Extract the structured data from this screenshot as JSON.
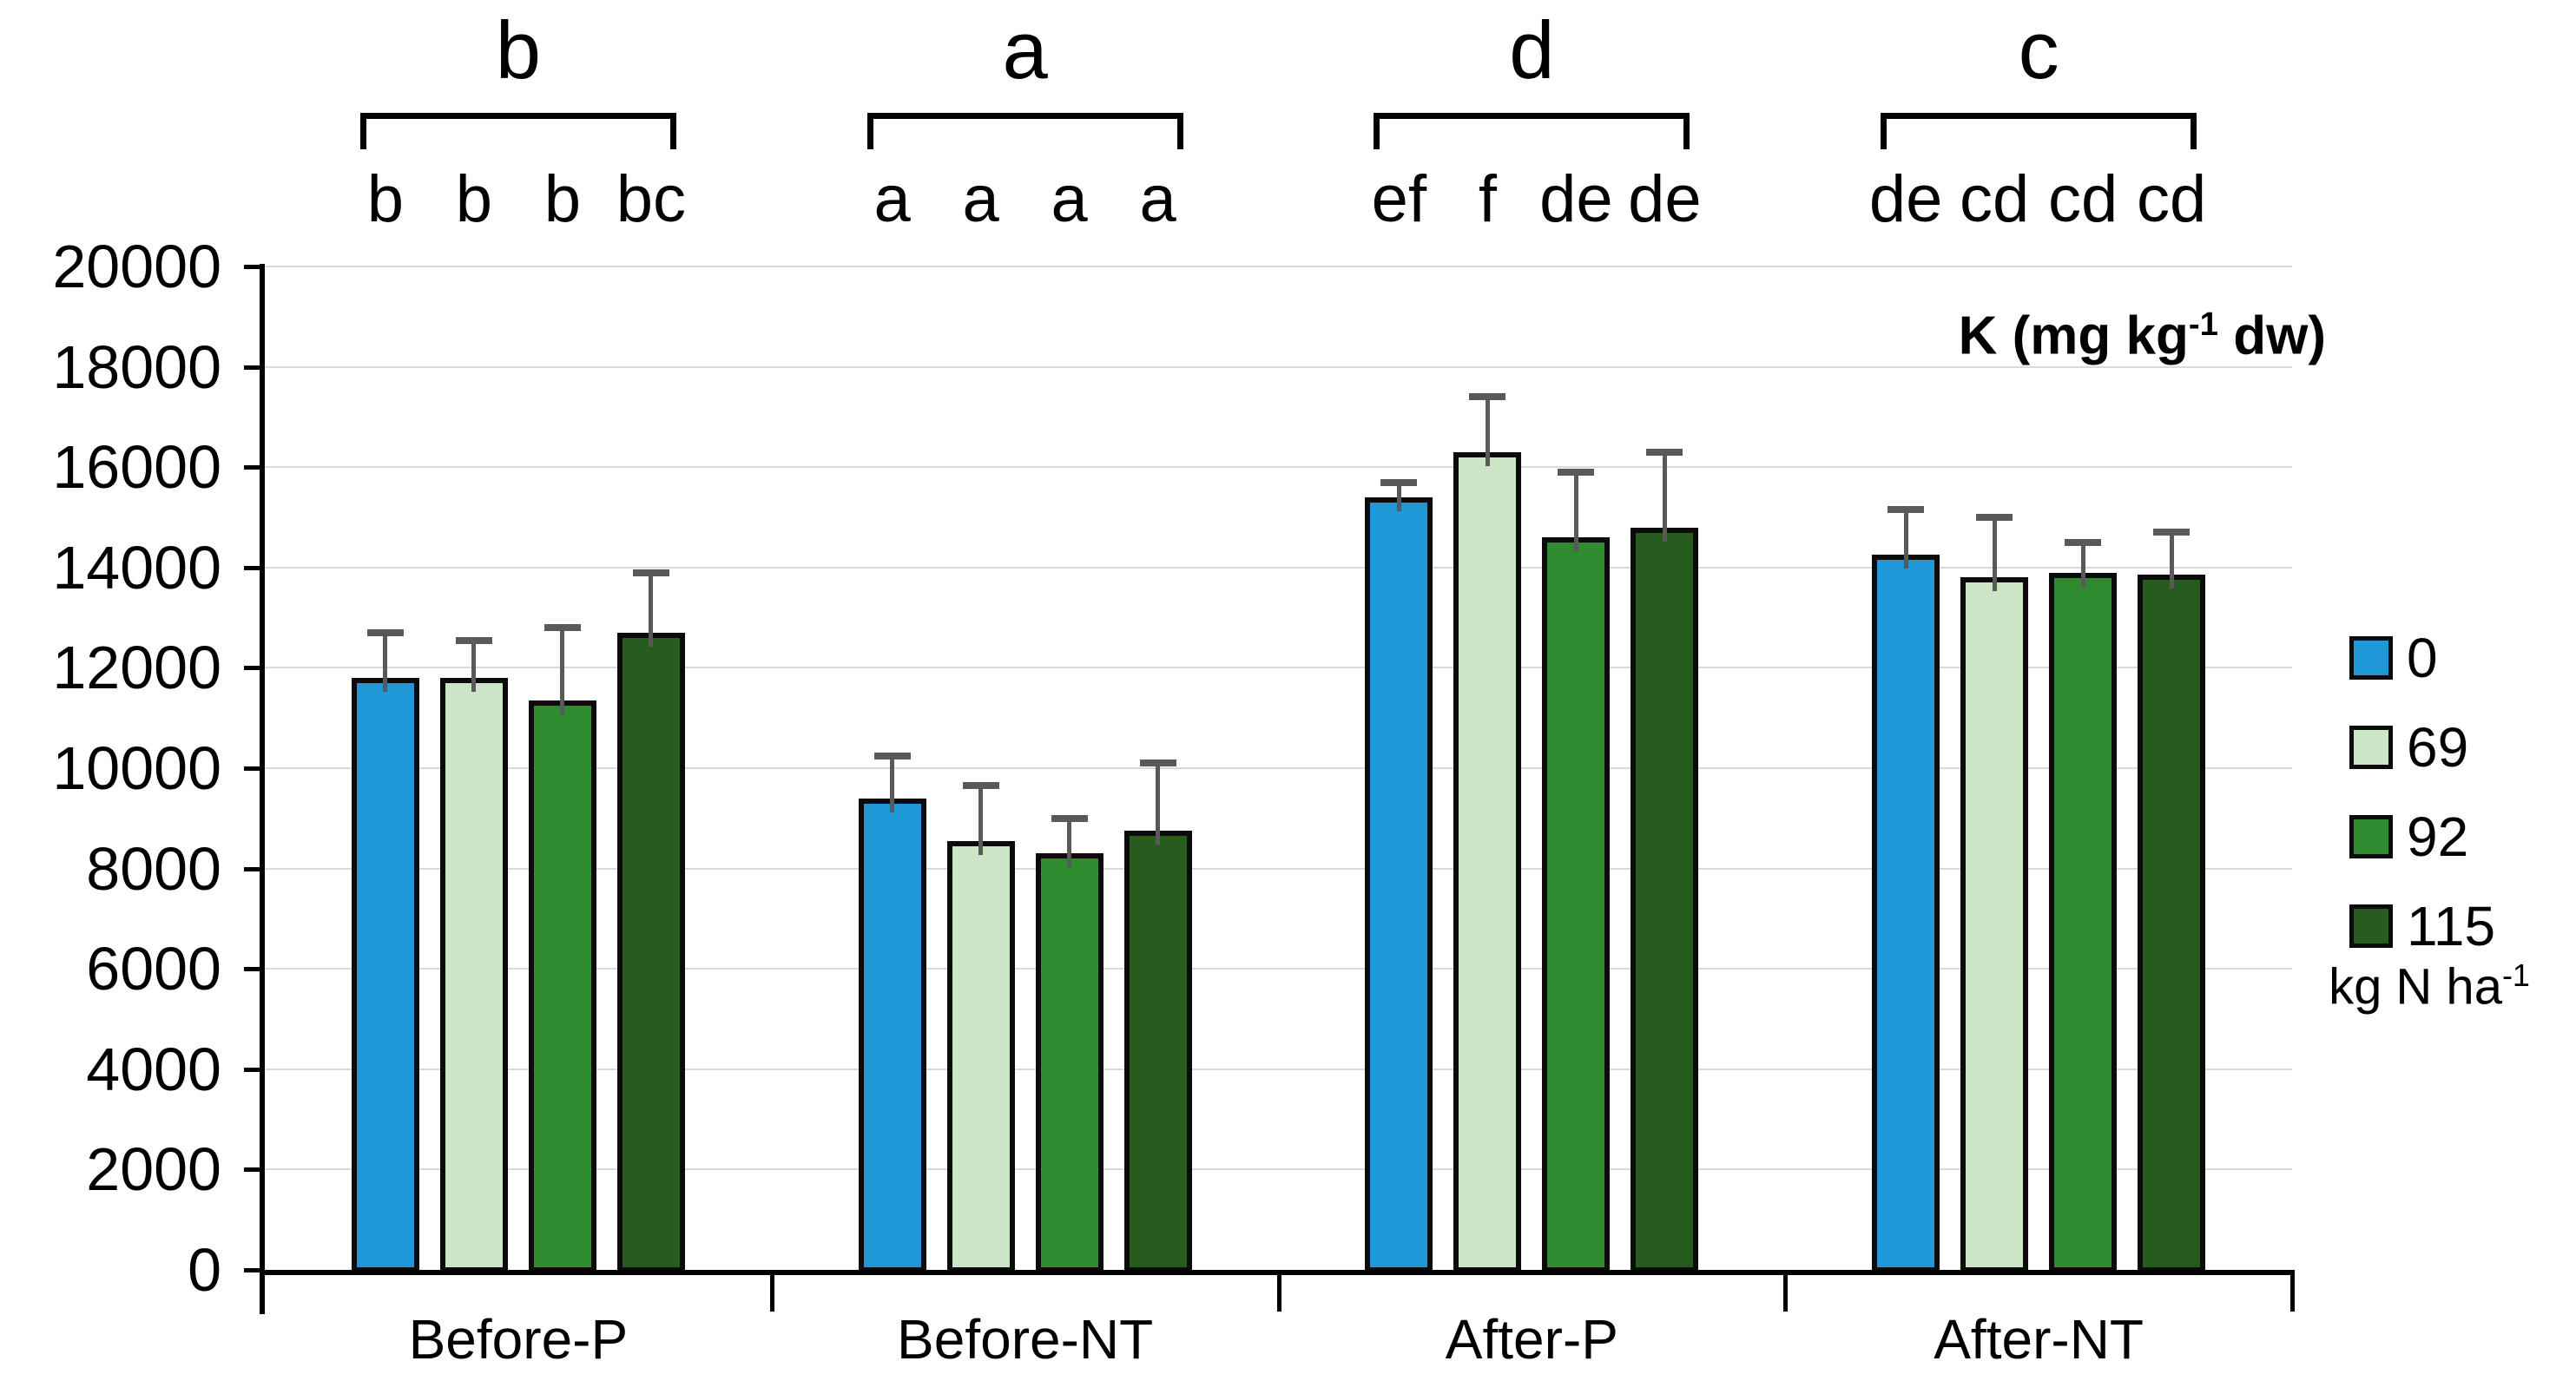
{
  "chart_data": {
    "type": "bar",
    "title": {
      "prefix": "K (mg kg",
      "sup": "-1",
      "suffix": " dw)"
    },
    "categories": [
      "Before-P",
      "Before-NT",
      "After-P",
      "After-NT"
    ],
    "series": [
      {
        "name": "0",
        "color": "#2098d8",
        "values": [
          11800,
          9400,
          15400,
          14250
        ],
        "errors": [
          900,
          850,
          300,
          900
        ],
        "letters": [
          "b",
          "a",
          "ef",
          "de"
        ]
      },
      {
        "name": "69",
        "color": "#cbe5c6",
        "values": [
          11800,
          8550,
          16300,
          13800
        ],
        "errors": [
          750,
          1100,
          1100,
          1200
        ],
        "letters": [
          "b",
          "a",
          "f",
          "cd"
        ]
      },
      {
        "name": "92",
        "color": "#2f8b2f",
        "values": [
          11350,
          8300,
          14600,
          13900
        ],
        "errors": [
          1450,
          700,
          1300,
          600
        ],
        "letters": [
          "b",
          "a",
          "de",
          "cd"
        ]
      },
      {
        "name": "115",
        "color": "#265c1c",
        "values": [
          12700,
          8750,
          14800,
          13850
        ],
        "errors": [
          1200,
          1350,
          1500,
          850
        ],
        "letters": [
          "bc",
          "a",
          "de",
          "cd"
        ]
      }
    ],
    "group_letters": [
      "b",
      "a",
      "d",
      "c"
    ],
    "ylabel": "",
    "xlabel": "",
    "ylim": [
      0,
      20000
    ],
    "ytick_step": 2000,
    "grid": true,
    "legend_position": "right",
    "legend_caption": {
      "prefix": "kg N ha",
      "sup": "-1"
    },
    "colors": {
      "error_bar": "#595959",
      "gridline": "#d9d9d9",
      "axis": "#000000",
      "bar_outline": "#0b0b0b"
    }
  }
}
